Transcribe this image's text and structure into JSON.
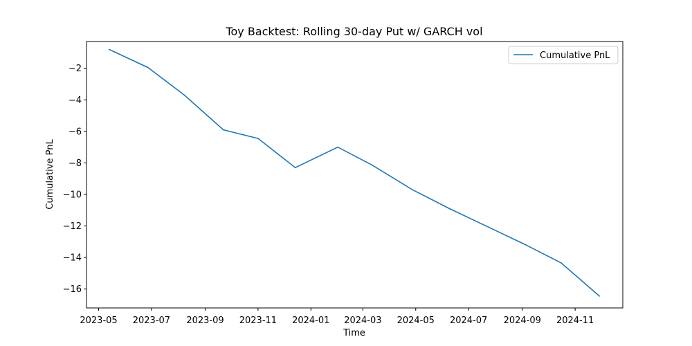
{
  "chart_data": {
    "type": "line",
    "title": "Toy Backtest: Rolling 30-day Put w/ GARCH vol",
    "xlabel": "Time",
    "ylabel": "Cumulative PnL",
    "x_ticks": [
      "2023-05-01",
      "2023-07-01",
      "2023-09-01",
      "2023-11-01",
      "2024-01-01",
      "2024-03-01",
      "2024-05-01",
      "2024-07-01",
      "2024-09-01",
      "2024-11-01"
    ],
    "x_tick_labels": [
      "2023-05",
      "2023-07",
      "2023-09",
      "2023-11",
      "2024-01",
      "2024-03",
      "2024-05",
      "2024-07",
      "2024-09",
      "2024-11"
    ],
    "y_ticks": [
      -2,
      -4,
      -6,
      -8,
      -10,
      -12,
      -14,
      -16
    ],
    "y_tick_labels": [
      "−2",
      "−4",
      "−6",
      "−8",
      "−10",
      "−12",
      "−14",
      "−16"
    ],
    "xlim": [
      "2023-04-17",
      "2024-12-26"
    ],
    "ylim": [
      -17.2,
      -0.3
    ],
    "grid": false,
    "legend": "top-right",
    "series": [
      {
        "name": "Cumulative PnL",
        "color": "#1f77b4",
        "x": [
          "2023-05-13",
          "2023-06-27",
          "2023-08-08",
          "2023-09-22",
          "2023-11-01",
          "2023-12-14",
          "2024-02-01",
          "2024-03-12",
          "2024-04-27",
          "2024-06-09",
          "2024-07-25",
          "2024-09-05",
          "2024-10-16",
          "2024-11-29"
        ],
        "y": [
          -0.8,
          -1.95,
          -3.7,
          -5.9,
          -6.45,
          -8.3,
          -7.0,
          -8.15,
          -9.7,
          -10.9,
          -12.1,
          -13.2,
          -14.35,
          -16.45
        ]
      }
    ]
  }
}
